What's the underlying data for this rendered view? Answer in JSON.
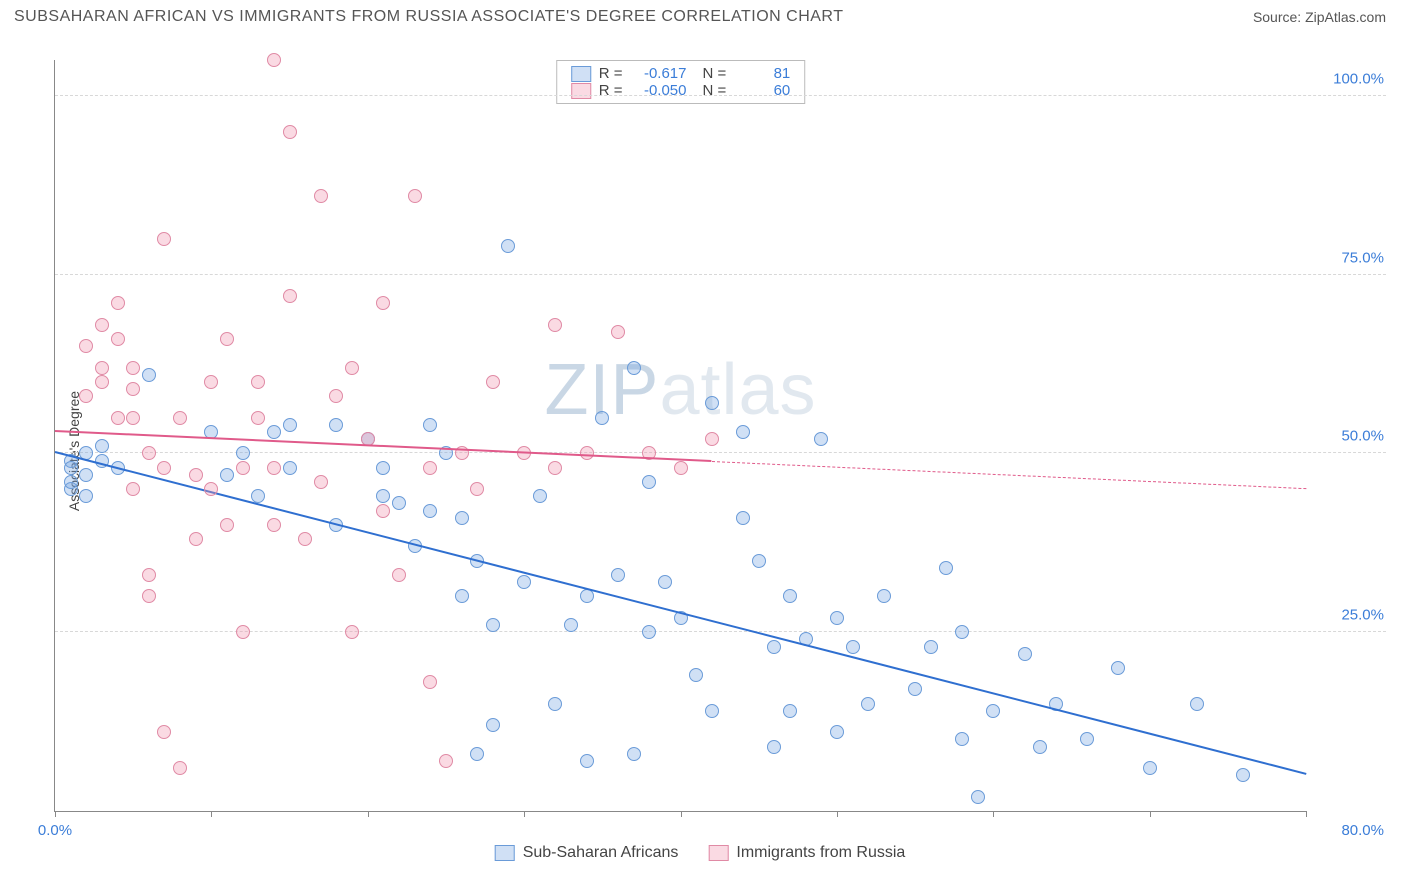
{
  "header": {
    "title": "SUBSAHARAN AFRICAN VS IMMIGRANTS FROM RUSSIA ASSOCIATE'S DEGREE CORRELATION CHART",
    "source": "Source: ZipAtlas.com"
  },
  "watermark": {
    "z": "ZIP",
    "rest": "atlas"
  },
  "chart": {
    "type": "scatter",
    "ylabel": "Associate's Degree",
    "xlim": [
      0,
      80
    ],
    "ylim": [
      0,
      105
    ],
    "xticks": [
      0,
      10,
      20,
      30,
      40,
      50,
      60,
      70,
      80
    ],
    "xtick_labels": {
      "0": "0.0%",
      "80": "80.0%"
    },
    "yticks": [
      25,
      50,
      75,
      100
    ],
    "ytick_labels": [
      "25.0%",
      "50.0%",
      "75.0%",
      "100.0%"
    ],
    "grid_color": "#d8d8d8",
    "background_color": "#ffffff",
    "axis_color": "#888888",
    "tick_label_color": "#3b7dd8",
    "marker_radius": 7,
    "series": [
      {
        "name": "Sub-Saharan Africans",
        "fill": "rgba(120,165,225,0.35)",
        "stroke": "#6a9bd8",
        "trend_color": "#2f6fd0",
        "r": "-0.617",
        "n": "81",
        "trend": {
          "x1": 0,
          "y1": 50,
          "x2": 80,
          "y2": 5,
          "solid_until_x": 80
        },
        "points": [
          [
            1,
            49
          ],
          [
            1,
            48
          ],
          [
            2,
            47
          ],
          [
            2,
            50
          ],
          [
            3,
            49
          ],
          [
            1,
            45
          ],
          [
            2,
            44
          ],
          [
            3,
            51
          ],
          [
            4,
            48
          ],
          [
            1,
            46
          ],
          [
            6,
            61
          ],
          [
            10,
            53
          ],
          [
            11,
            47
          ],
          [
            12,
            50
          ],
          [
            13,
            44
          ],
          [
            14,
            53
          ],
          [
            15,
            48
          ],
          [
            15,
            54
          ],
          [
            18,
            40
          ],
          [
            18,
            54
          ],
          [
            20,
            52
          ],
          [
            21,
            44
          ],
          [
            21,
            48
          ],
          [
            22,
            43
          ],
          [
            23,
            37
          ],
          [
            24,
            54
          ],
          [
            24,
            42
          ],
          [
            25,
            50
          ],
          [
            26,
            41
          ],
          [
            26,
            30
          ],
          [
            27,
            8
          ],
          [
            27,
            35
          ],
          [
            28,
            26
          ],
          [
            28,
            12
          ],
          [
            29,
            79
          ],
          [
            30,
            32
          ],
          [
            31,
            44
          ],
          [
            32,
            15
          ],
          [
            33,
            26
          ],
          [
            34,
            30
          ],
          [
            34,
            7
          ],
          [
            35,
            55
          ],
          [
            36,
            33
          ],
          [
            37,
            62
          ],
          [
            37,
            8
          ],
          [
            38,
            25
          ],
          [
            38,
            46
          ],
          [
            39,
            32
          ],
          [
            40,
            27
          ],
          [
            41,
            19
          ],
          [
            42,
            57
          ],
          [
            42,
            14
          ],
          [
            44,
            41
          ],
          [
            44,
            53
          ],
          [
            45,
            35
          ],
          [
            46,
            9
          ],
          [
            46,
            23
          ],
          [
            47,
            14
          ],
          [
            47,
            30
          ],
          [
            48,
            24
          ],
          [
            49,
            52
          ],
          [
            50,
            11
          ],
          [
            50,
            27
          ],
          [
            51,
            23
          ],
          [
            52,
            15
          ],
          [
            53,
            30
          ],
          [
            55,
            17
          ],
          [
            56,
            23
          ],
          [
            57,
            34
          ],
          [
            58,
            10
          ],
          [
            58,
            25
          ],
          [
            59,
            2
          ],
          [
            60,
            14
          ],
          [
            62,
            22
          ],
          [
            63,
            9
          ],
          [
            64,
            15
          ],
          [
            66,
            10
          ],
          [
            68,
            20
          ],
          [
            70,
            6
          ],
          [
            73,
            15
          ],
          [
            76,
            5
          ]
        ]
      },
      {
        "name": "Immigrants from Russia",
        "fill": "rgba(240,150,175,0.35)",
        "stroke": "#e08aa5",
        "trend_color": "#e05a8a",
        "r": "-0.050",
        "n": "60",
        "trend": {
          "x1": 0,
          "y1": 53,
          "x2": 80,
          "y2": 45,
          "solid_until_x": 42
        },
        "points": [
          [
            2,
            65
          ],
          [
            2,
            58
          ],
          [
            3,
            62
          ],
          [
            3,
            60
          ],
          [
            3,
            68
          ],
          [
            4,
            55
          ],
          [
            4,
            66
          ],
          [
            4,
            71
          ],
          [
            5,
            55
          ],
          [
            5,
            59
          ],
          [
            5,
            62
          ],
          [
            5,
            45
          ],
          [
            6,
            33
          ],
          [
            6,
            50
          ],
          [
            6,
            30
          ],
          [
            7,
            48
          ],
          [
            7,
            11
          ],
          [
            7,
            80
          ],
          [
            8,
            6
          ],
          [
            8,
            55
          ],
          [
            9,
            38
          ],
          [
            9,
            47
          ],
          [
            10,
            60
          ],
          [
            10,
            45
          ],
          [
            11,
            40
          ],
          [
            11,
            66
          ],
          [
            12,
            25
          ],
          [
            12,
            48
          ],
          [
            13,
            55
          ],
          [
            13,
            60
          ],
          [
            14,
            105
          ],
          [
            14,
            40
          ],
          [
            14,
            48
          ],
          [
            15,
            72
          ],
          [
            15,
            95
          ],
          [
            16,
            38
          ],
          [
            17,
            46
          ],
          [
            17,
            86
          ],
          [
            18,
            58
          ],
          [
            19,
            25
          ],
          [
            19,
            62
          ],
          [
            20,
            52
          ],
          [
            21,
            42
          ],
          [
            21,
            71
          ],
          [
            22,
            33
          ],
          [
            23,
            86
          ],
          [
            24,
            18
          ],
          [
            24,
            48
          ],
          [
            25,
            7
          ],
          [
            26,
            50
          ],
          [
            27,
            45
          ],
          [
            28,
            60
          ],
          [
            30,
            50
          ],
          [
            32,
            48
          ],
          [
            32,
            68
          ],
          [
            34,
            50
          ],
          [
            36,
            67
          ],
          [
            38,
            50
          ],
          [
            40,
            48
          ],
          [
            42,
            52
          ]
        ]
      }
    ],
    "legend_bottom": [
      "Sub-Saharan Africans",
      "Immigrants from Russia"
    ]
  }
}
